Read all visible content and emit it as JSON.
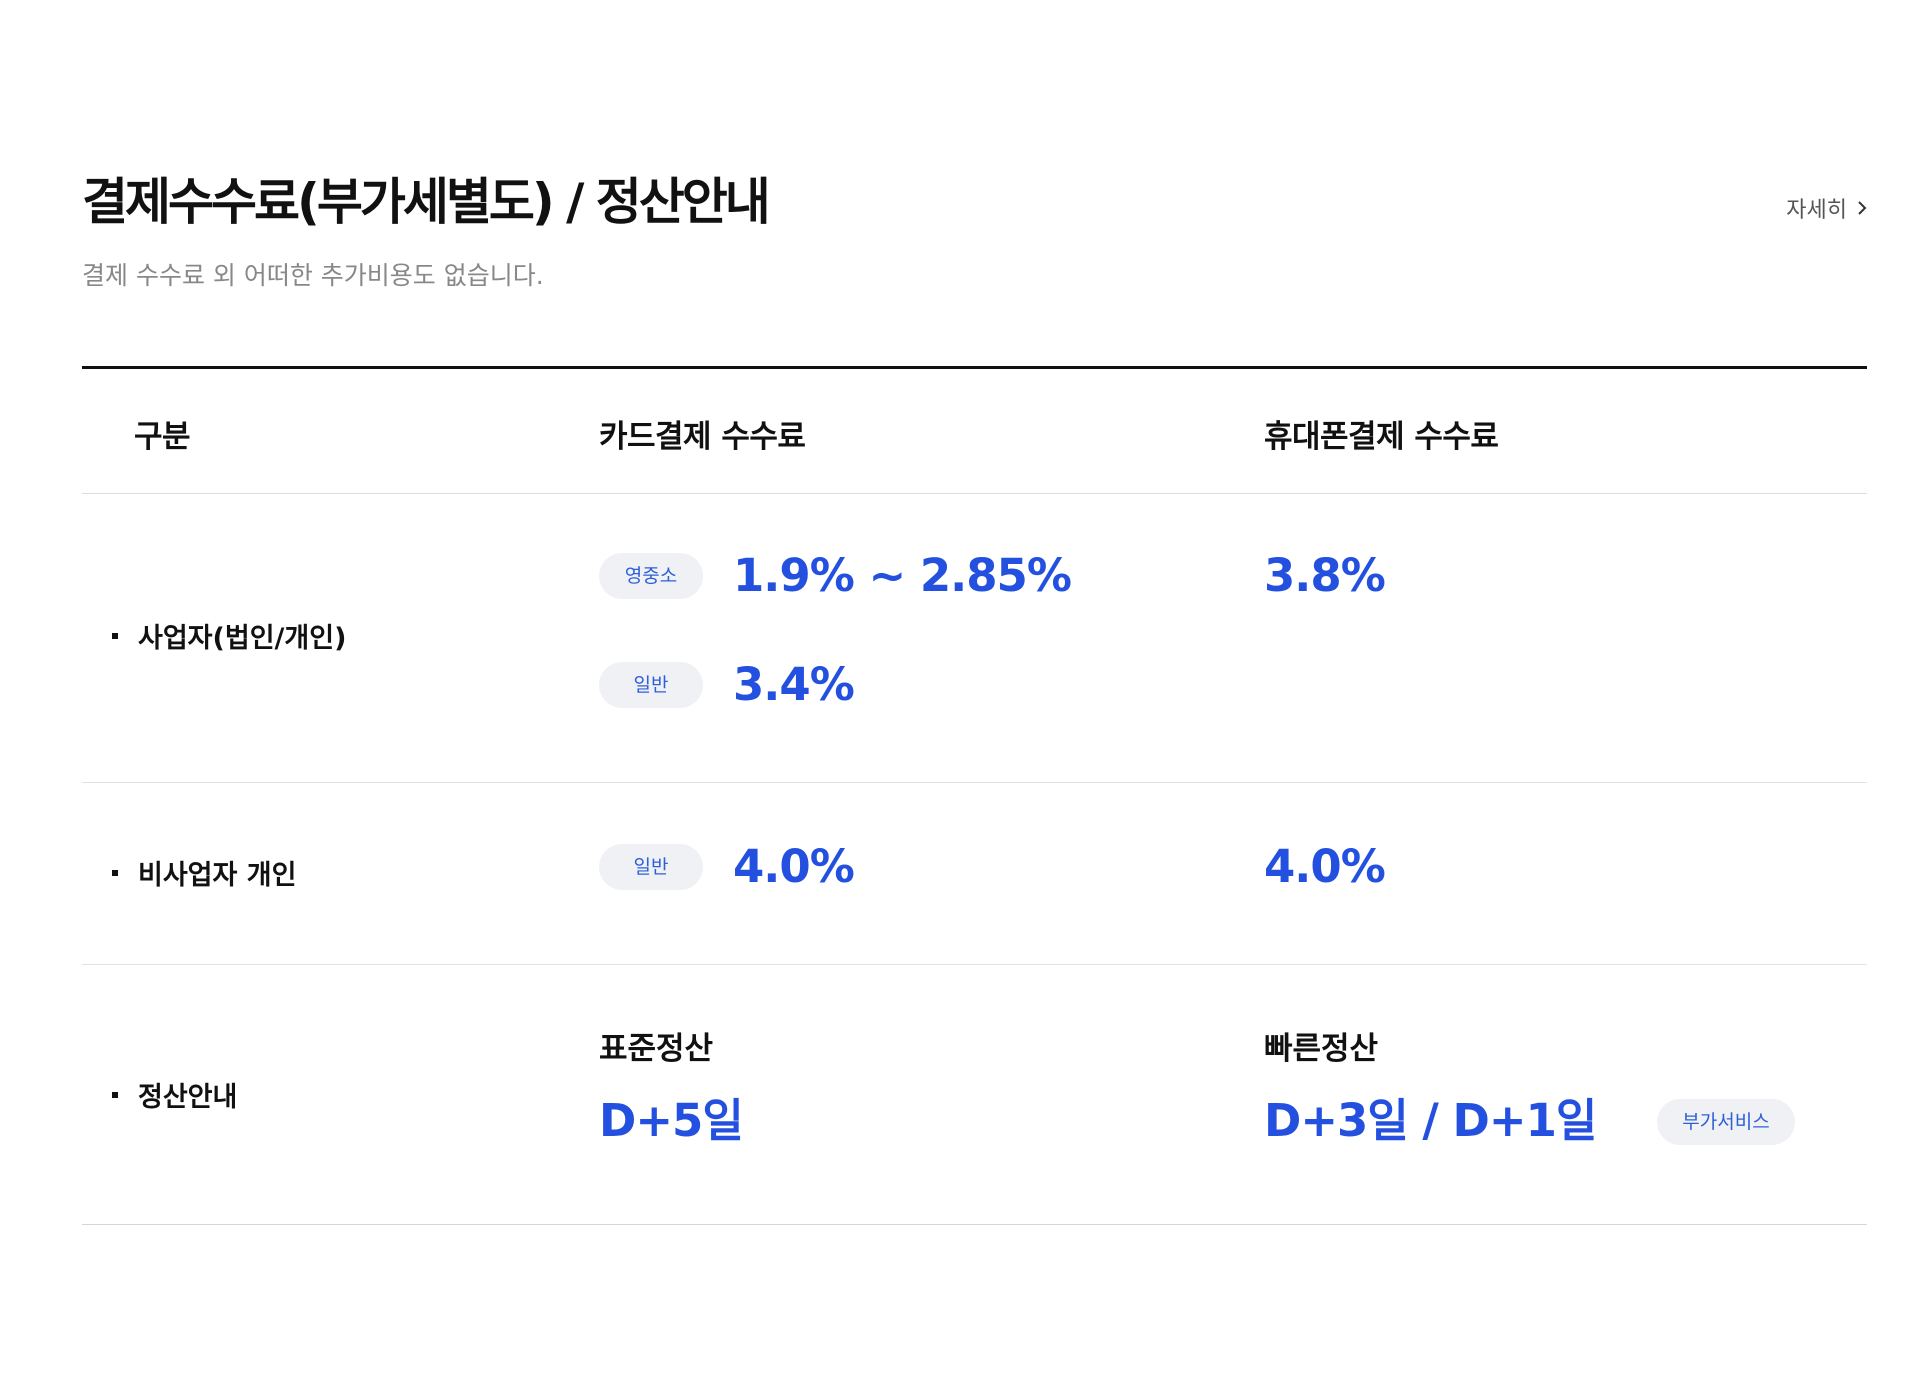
{
  "header": {
    "title": "결제수수료(부가세별도) / 정산안내",
    "subtitle": "결제 수수료 외 어떠한 추가비용도 없습니다.",
    "more_label": "자세히"
  },
  "table": {
    "columns": [
      "구분",
      "카드결제 수수료",
      "휴대폰결제 수수료"
    ],
    "rows": {
      "business": {
        "label": "사업자(법인/개인)",
        "card": [
          {
            "badge": "영중소",
            "rate": "1.9% ~ 2.85%"
          },
          {
            "badge": "일반",
            "rate": "3.4%"
          }
        ],
        "mobile": "3.8%"
      },
      "nonbusiness": {
        "label": "비사업자 개인",
        "card": [
          {
            "badge": "일반",
            "rate": "4.0%"
          }
        ],
        "mobile": "4.0%"
      },
      "settlement": {
        "label": "정산안내",
        "standard_title": "표준정산",
        "standard_value": "D+5일",
        "fast_title": "빠른정산",
        "fast_value": "D+3일 / D+1일",
        "fast_badge": "부가서비스"
      }
    }
  },
  "colors": {
    "accent": "#2450e0",
    "badge_bg": "#f0f1f4",
    "badge_text": "#2e5fd8",
    "title": "#111111",
    "subtitle": "#888888"
  },
  "icons": {
    "more": "chevron-right-icon",
    "bullet": "square-bullet-icon"
  }
}
